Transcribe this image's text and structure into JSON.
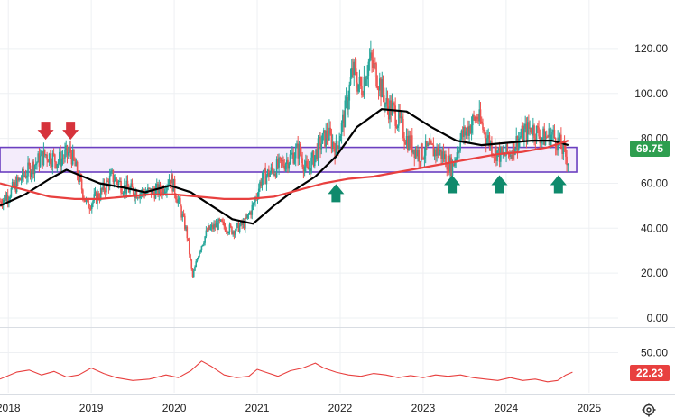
{
  "chart_data": {
    "type": "candlestick",
    "title": "",
    "xlabel": "",
    "ylabel": "",
    "xlim": [
      2017.9,
      2025.35
    ],
    "ylim": [
      0,
      130
    ],
    "x_ticks": [
      "2018",
      "2019",
      "2020",
      "2021",
      "2022",
      "2023",
      "2024",
      "2025"
    ],
    "y_ticks": [
      "0.00",
      "20.00",
      "40.00",
      "60.00",
      "80.00",
      "100.00",
      "120.00"
    ],
    "last_price": {
      "label": "69.75",
      "value": 69.75,
      "color": "#2e9e4f"
    },
    "support_resistance_zone": {
      "low": 65,
      "high": 76,
      "start": 2017.9,
      "end": 2024.85,
      "border": "#6b3fc0",
      "fill": "#f4ecfb"
    },
    "price_path": [
      [
        2017.9,
        52
      ],
      [
        2018.0,
        55
      ],
      [
        2018.15,
        62
      ],
      [
        2018.3,
        68
      ],
      [
        2018.45,
        73
      ],
      [
        2018.6,
        70
      ],
      [
        2018.75,
        74
      ],
      [
        2018.85,
        62
      ],
      [
        2018.95,
        50
      ],
      [
        2019.1,
        55
      ],
      [
        2019.25,
        63
      ],
      [
        2019.4,
        58
      ],
      [
        2019.55,
        56
      ],
      [
        2019.7,
        56
      ],
      [
        2019.85,
        57
      ],
      [
        2019.95,
        63
      ],
      [
        2020.05,
        52
      ],
      [
        2020.15,
        38
      ],
      [
        2020.22,
        18
      ],
      [
        2020.3,
        30
      ],
      [
        2020.4,
        39
      ],
      [
        2020.55,
        42
      ],
      [
        2020.7,
        39
      ],
      [
        2020.85,
        42
      ],
      [
        2020.95,
        50
      ],
      [
        2021.05,
        62
      ],
      [
        2021.2,
        66
      ],
      [
        2021.35,
        70
      ],
      [
        2021.5,
        75
      ],
      [
        2021.6,
        65
      ],
      [
        2021.75,
        77
      ],
      [
        2021.85,
        82
      ],
      [
        2021.95,
        75
      ],
      [
        2022.05,
        90
      ],
      [
        2022.15,
        110
      ],
      [
        2022.25,
        102
      ],
      [
        2022.35,
        115
      ],
      [
        2022.45,
        108
      ],
      [
        2022.55,
        95
      ],
      [
        2022.65,
        92
      ],
      [
        2022.8,
        80
      ],
      [
        2022.95,
        73
      ],
      [
        2023.05,
        75
      ],
      [
        2023.2,
        74
      ],
      [
        2023.35,
        67
      ],
      [
        2023.45,
        80
      ],
      [
        2023.55,
        85
      ],
      [
        2023.65,
        90
      ],
      [
        2023.75,
        82
      ],
      [
        2023.85,
        75
      ],
      [
        2023.95,
        72
      ],
      [
        2024.05,
        74
      ],
      [
        2024.15,
        80
      ],
      [
        2024.3,
        85
      ],
      [
        2024.45,
        80
      ],
      [
        2024.55,
        82
      ],
      [
        2024.65,
        77
      ],
      [
        2024.75,
        70
      ]
    ],
    "series": [
      {
        "color": "#000000",
        "path": [
          [
            2017.9,
            50
          ],
          [
            2018.2,
            55
          ],
          [
            2018.5,
            62
          ],
          [
            2018.7,
            66
          ],
          [
            2018.9,
            63
          ],
          [
            2019.1,
            60
          ],
          [
            2019.4,
            58
          ],
          [
            2019.65,
            56
          ],
          [
            2019.95,
            59
          ],
          [
            2020.2,
            56
          ],
          [
            2020.45,
            50
          ],
          [
            2020.7,
            44
          ],
          [
            2020.95,
            42
          ],
          [
            2021.2,
            50
          ],
          [
            2021.45,
            57
          ],
          [
            2021.7,
            63
          ],
          [
            2021.95,
            72
          ],
          [
            2022.2,
            85
          ],
          [
            2022.5,
            93
          ],
          [
            2022.8,
            92
          ],
          [
            2023.1,
            85
          ],
          [
            2023.4,
            79
          ],
          [
            2023.7,
            77
          ],
          [
            2024.0,
            78
          ],
          [
            2024.3,
            79
          ],
          [
            2024.55,
            79
          ],
          [
            2024.75,
            77
          ]
        ]
      },
      {
        "color": "#e8403f",
        "path": [
          [
            2017.9,
            60
          ],
          [
            2018.2,
            57
          ],
          [
            2018.5,
            54
          ],
          [
            2018.8,
            53
          ],
          [
            2019.1,
            53
          ],
          [
            2019.4,
            54
          ],
          [
            2019.7,
            55
          ],
          [
            2020.0,
            55
          ],
          [
            2020.3,
            54
          ],
          [
            2020.6,
            53
          ],
          [
            2020.9,
            53
          ],
          [
            2021.2,
            54
          ],
          [
            2021.5,
            57
          ],
          [
            2021.8,
            60
          ],
          [
            2022.1,
            62
          ],
          [
            2022.4,
            63
          ],
          [
            2022.7,
            65
          ],
          [
            2023.0,
            67
          ],
          [
            2023.3,
            69
          ],
          [
            2023.6,
            71
          ],
          [
            2023.9,
            73
          ],
          [
            2024.2,
            74
          ],
          [
            2024.5,
            76
          ],
          [
            2024.75,
            79
          ]
        ]
      }
    ],
    "annotations": [
      {
        "type": "arrow-down",
        "x": 2018.45,
        "value": 83,
        "color": "#d6333c"
      },
      {
        "type": "arrow-down",
        "x": 2018.75,
        "value": 83,
        "color": "#d6333c"
      },
      {
        "type": "arrow-up",
        "x": 2021.95,
        "value": 56,
        "color": "#0f8a6c"
      },
      {
        "type": "arrow-up",
        "x": 2023.35,
        "value": 60,
        "color": "#0f8a6c"
      },
      {
        "type": "arrow-up",
        "x": 2023.92,
        "value": 60,
        "color": "#0f8a6c"
      },
      {
        "type": "arrow-up",
        "x": 2024.63,
        "value": 60,
        "color": "#0f8a6c"
      }
    ],
    "oscillator": {
      "ylim": [
        0,
        65
      ],
      "y_ticks": [
        "50.00"
      ],
      "last_value": {
        "label": "22.23",
        "value": 22.23,
        "color": "#e8403f"
      },
      "color": "#e8403f",
      "path": [
        [
          2017.9,
          12
        ],
        [
          2018.1,
          22
        ],
        [
          2018.25,
          25
        ],
        [
          2018.4,
          18
        ],
        [
          2018.55,
          23
        ],
        [
          2018.7,
          15
        ],
        [
          2018.85,
          18
        ],
        [
          2019.0,
          28
        ],
        [
          2019.15,
          20
        ],
        [
          2019.3,
          14
        ],
        [
          2019.5,
          10
        ],
        [
          2019.7,
          12
        ],
        [
          2019.9,
          18
        ],
        [
          2020.05,
          14
        ],
        [
          2020.2,
          24
        ],
        [
          2020.33,
          38
        ],
        [
          2020.45,
          30
        ],
        [
          2020.6,
          18
        ],
        [
          2020.75,
          14
        ],
        [
          2020.9,
          16
        ],
        [
          2021.0,
          26
        ],
        [
          2021.1,
          22
        ],
        [
          2021.25,
          16
        ],
        [
          2021.4,
          24
        ],
        [
          2021.55,
          28
        ],
        [
          2021.7,
          35
        ],
        [
          2021.8,
          28
        ],
        [
          2021.95,
          22
        ],
        [
          2022.1,
          18
        ],
        [
          2022.25,
          16
        ],
        [
          2022.4,
          20
        ],
        [
          2022.55,
          18
        ],
        [
          2022.7,
          14
        ],
        [
          2022.85,
          17
        ],
        [
          2023.0,
          14
        ],
        [
          2023.15,
          18
        ],
        [
          2023.3,
          16
        ],
        [
          2023.45,
          18
        ],
        [
          2023.6,
          14
        ],
        [
          2023.75,
          12
        ],
        [
          2023.9,
          10
        ],
        [
          2024.05,
          14
        ],
        [
          2024.2,
          10
        ],
        [
          2024.35,
          12
        ],
        [
          2024.5,
          8
        ],
        [
          2024.62,
          10
        ],
        [
          2024.72,
          18
        ],
        [
          2024.8,
          22
        ]
      ]
    }
  },
  "settings_icon": "gear-icon"
}
